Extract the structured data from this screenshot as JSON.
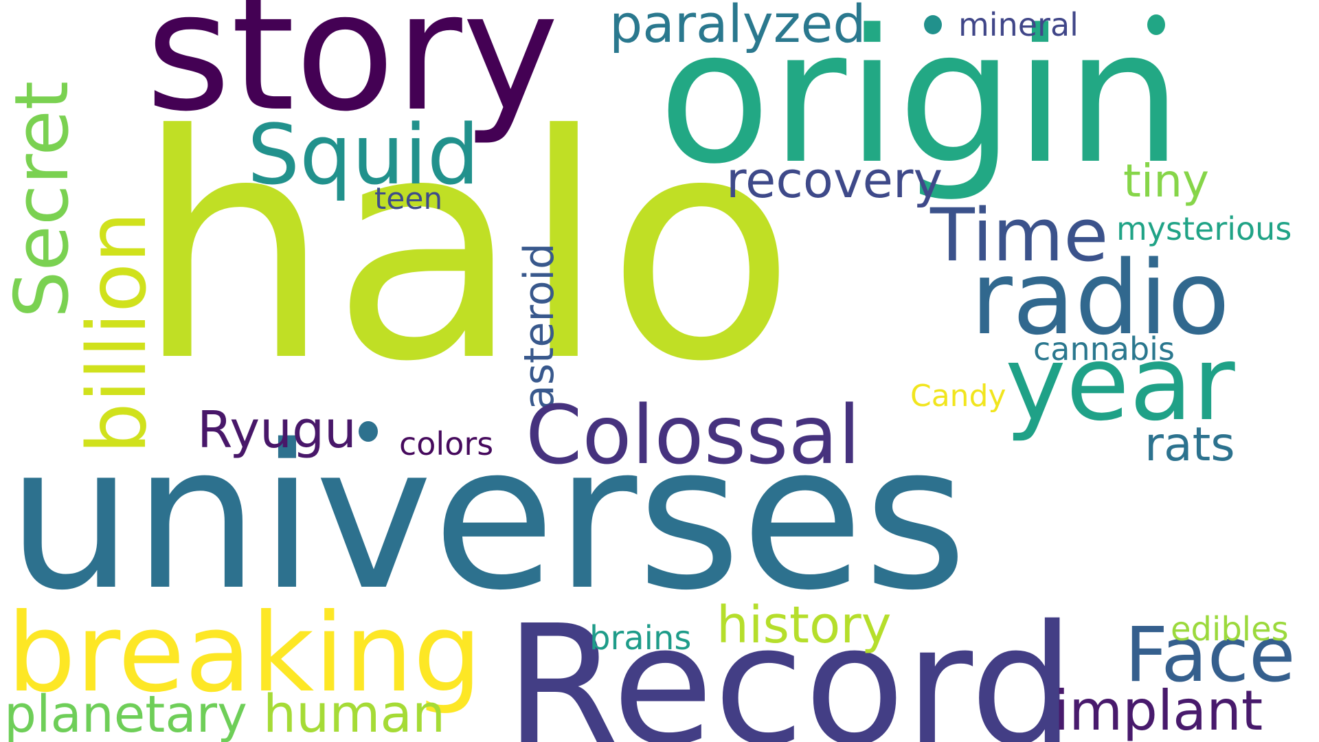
{
  "words": [
    {
      "text": "halo",
      "color": "#c0df25"
    },
    {
      "text": "universes",
      "color": "#2d718e"
    },
    {
      "text": "origin",
      "color": "#22a884"
    },
    {
      "text": "story",
      "color": "#440154"
    },
    {
      "text": "Record",
      "color": "#433e85"
    },
    {
      "text": "breaking",
      "color": "#fde725"
    },
    {
      "text": "billion",
      "color": "#d0e11c"
    },
    {
      "text": "Secret",
      "color": "#7ad151"
    },
    {
      "text": "radio",
      "color": "#31688e"
    },
    {
      "text": "year",
      "color": "#1fa187"
    },
    {
      "text": "Time",
      "color": "#3b528b"
    },
    {
      "text": "Squid",
      "color": "#21918c"
    },
    {
      "text": "Colossal",
      "color": "#46327e"
    },
    {
      "text": "Face",
      "color": "#355f8d"
    },
    {
      "text": "asteroid",
      "color": "#38588c"
    },
    {
      "text": "recovery",
      "color": "#3e4989"
    },
    {
      "text": "paralyzed",
      "color": "#2a788e"
    },
    {
      "text": "history",
      "color": "#b5de2b"
    },
    {
      "text": "human",
      "color": "#a5db36"
    },
    {
      "text": "planetary",
      "color": "#6ece58"
    },
    {
      "text": "implant",
      "color": "#481a6c"
    },
    {
      "text": "Ryugu",
      "color": "#481769"
    },
    {
      "text": "tiny",
      "color": "#86d549"
    },
    {
      "text": "rats",
      "color": "#2c728e"
    },
    {
      "text": "mysterious",
      "color": "#20a386"
    },
    {
      "text": "cannabis",
      "color": "#2a778e"
    },
    {
      "text": "edibles",
      "color": "#9bd93c"
    },
    {
      "text": "brains",
      "color": "#1e9c89"
    },
    {
      "text": "Candy",
      "color": "#f1e51d"
    },
    {
      "text": "colors",
      "color": "#460a5d"
    },
    {
      "text": "teen",
      "color": "#3e4c8a"
    },
    {
      "text": "mineral",
      "color": "#404688"
    }
  ],
  "dots": [
    {
      "color": "#21918c"
    },
    {
      "color": "#21a685"
    },
    {
      "color": "#2d718e"
    }
  ]
}
